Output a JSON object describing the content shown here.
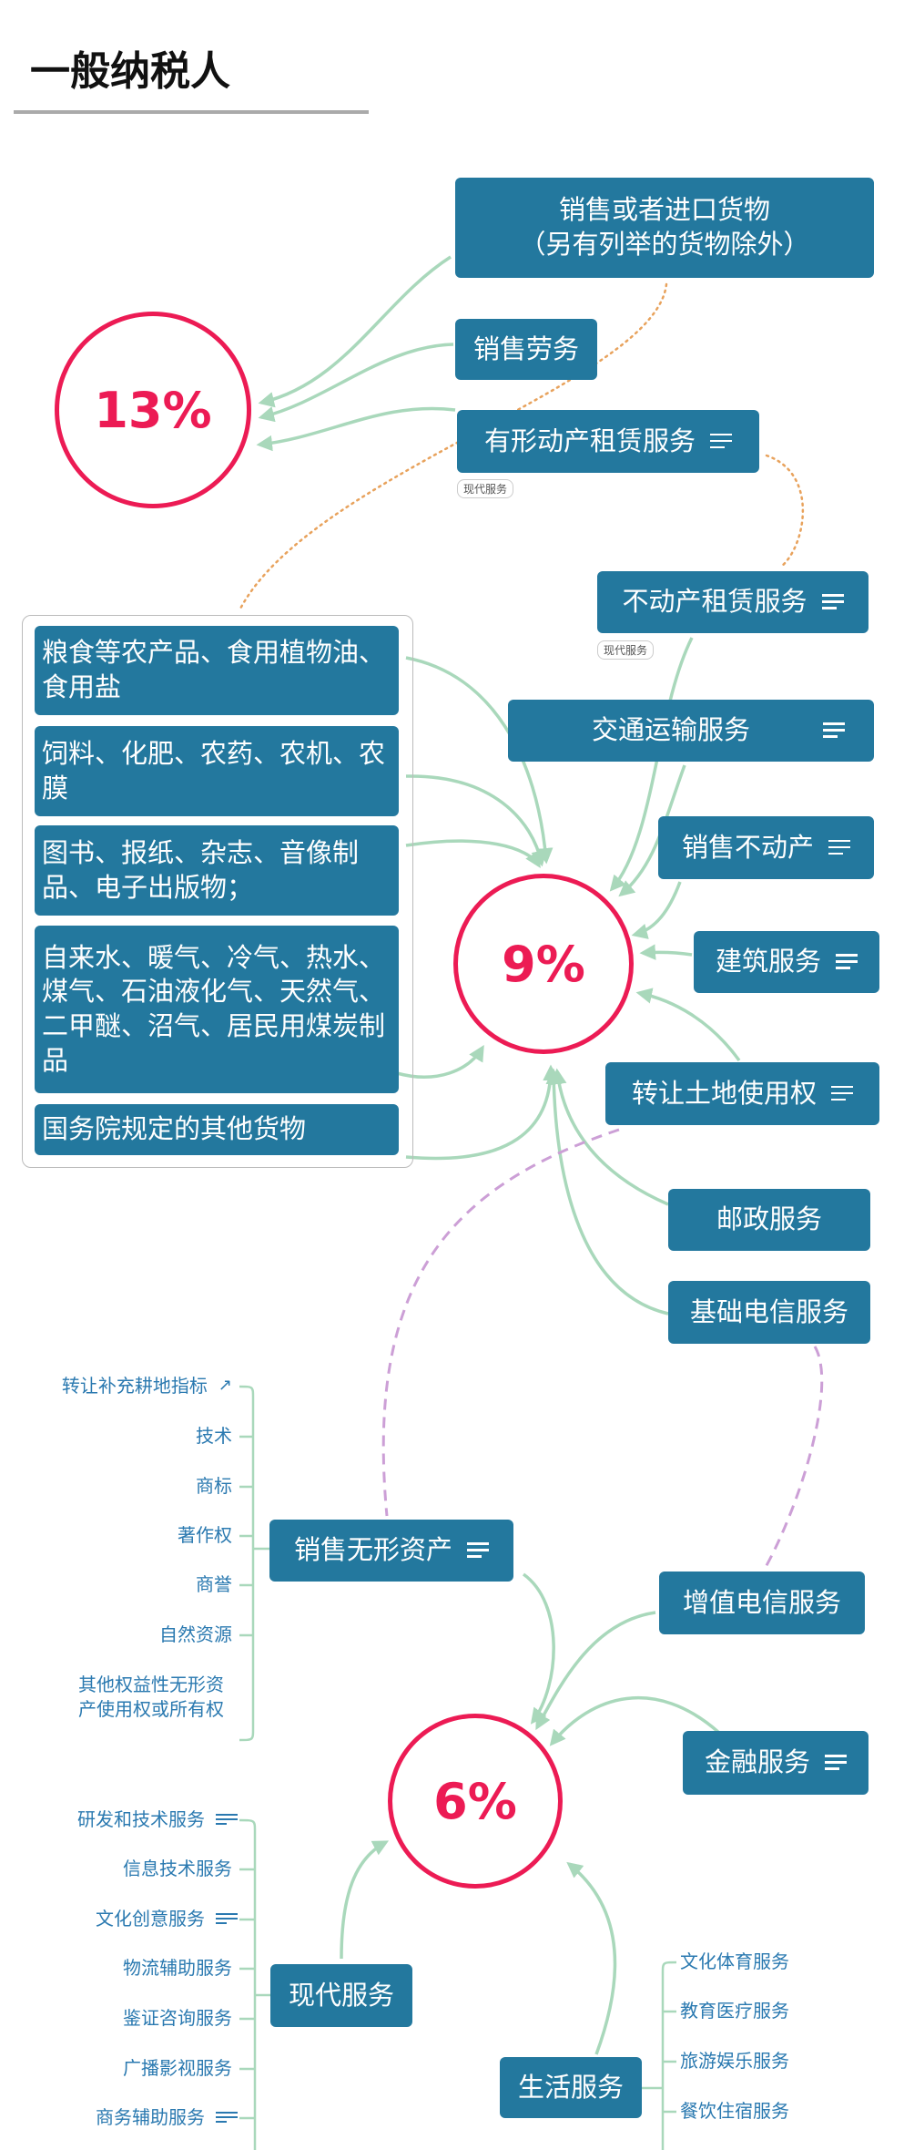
{
  "title": "一般纳税人",
  "rates": {
    "r13": "13%",
    "r9": "9%",
    "r6": "6%"
  },
  "rate_13": {
    "goods_line1": "销售或者进口货物",
    "goods_line2": "（另有列举的货物除外）",
    "labor": "销售劳务",
    "tangible_lease": "有形动产租赁服务",
    "tangible_lease_tag": "现代服务"
  },
  "rate_9": {
    "goods_group": [
      "粮食等农产品、食用植物油、食用盐",
      "饲料、化肥、农药、农机、农膜",
      "图书、报纸、杂志、音像制品、电子出版物；",
      "自来水、暖气、冷气、热水、煤气、石油液化气、天然气、二甲醚、沼气、居民用煤炭制品",
      "国务院规定的其他货物"
    ],
    "real_estate_lease": "不动产租赁服务",
    "real_estate_lease_tag": "现代服务",
    "transport": "交通运输服务",
    "sell_real_estate": "销售不动产",
    "construction": "建筑服务",
    "land_use_transfer": "转让土地使用权",
    "postal": "邮政服务",
    "basic_telecom": "基础电信服务"
  },
  "rate_6": {
    "intangible": "销售无形资产",
    "intangible_items": [
      "转让补充耕地指标",
      "技术",
      "商标",
      "著作权",
      "商誉",
      "自然资源",
      "其他权益性无形资产使用权或所有权"
    ],
    "value_added_telecom": "增值电信服务",
    "finance": "金融服务",
    "modern": "现代服务",
    "modern_items": [
      "研发和技术服务",
      "信息技术服务",
      "文化创意服务",
      "物流辅助服务",
      "鉴证咨询服务",
      "广播影视服务",
      "商务辅助服务"
    ],
    "life": "生活服务",
    "life_items": [
      "文化体育服务",
      "教育医疗服务",
      "旅游娱乐服务",
      "餐饮住宿服务"
    ]
  },
  "colors": {
    "node": "#23789e",
    "rate": "#ec1b54",
    "arrow": "#a9d8bb",
    "dotted": "#e8a25c",
    "dashed": "#cc9fd6",
    "leaf_text": "#2a79b0"
  }
}
